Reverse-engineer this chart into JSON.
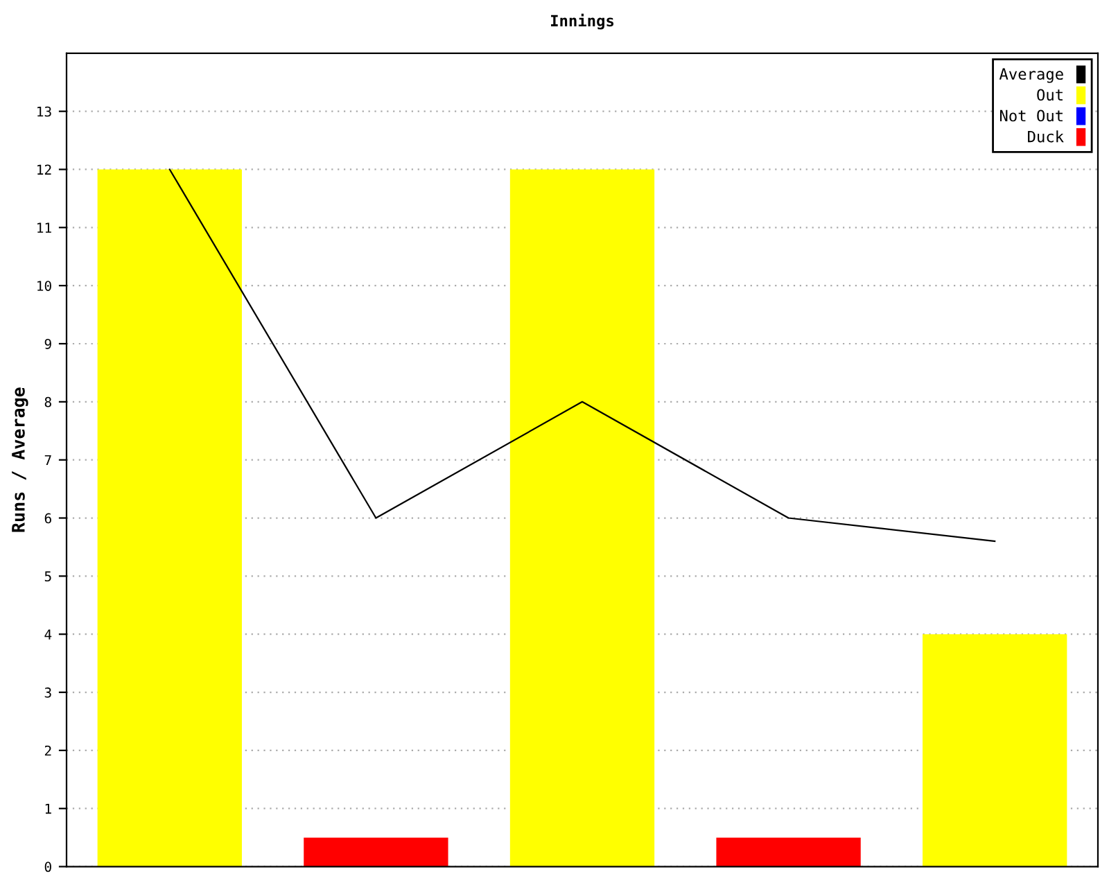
{
  "chart_data": {
    "type": "bar",
    "title": "Innings",
    "ylabel": "Runs / Average",
    "categories": [
      null,
      null,
      null,
      null,
      null
    ],
    "series": [
      {
        "name": "Average",
        "type": "line",
        "color": "#000000",
        "values": [
          12,
          6,
          8,
          6,
          5.6
        ]
      },
      {
        "name": "Out",
        "color": "#ffff00",
        "values": [
          12,
          null,
          12,
          null,
          4
        ]
      },
      {
        "name": "Not Out",
        "color": "#0000ff",
        "values": [
          null,
          null,
          null,
          null,
          null
        ]
      },
      {
        "name": "Duck",
        "color": "#ff0000",
        "values": [
          null,
          0.5,
          null,
          0.5,
          null
        ]
      }
    ],
    "ylim": [
      0,
      14
    ],
    "yticks": [
      0,
      1,
      2,
      3,
      4,
      5,
      6,
      7,
      8,
      9,
      10,
      11,
      12,
      13
    ],
    "grid": "y",
    "legend": "top right",
    "tick_labels": "y",
    "marker": "none"
  }
}
